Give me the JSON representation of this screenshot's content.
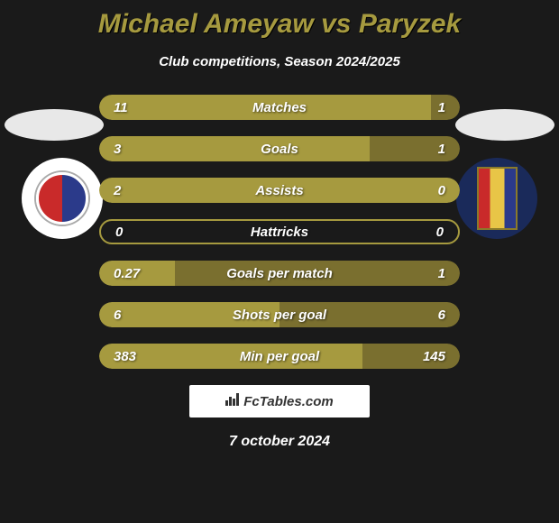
{
  "title": {
    "player1": "Michael Ameyaw",
    "vs": "vs",
    "player2": "Paryzek",
    "color": "#a69a3f",
    "fontsize": 30
  },
  "subtitle": {
    "text": "Club competitions, Season 2024/2025",
    "color": "#ffffff",
    "fontsize": 15
  },
  "stats": [
    {
      "label": "Matches",
      "left_value": "11",
      "right_value": "1",
      "left_pct": 92,
      "right_pct": 8,
      "left_color": "#a69a3f",
      "right_color": "#7a6f2f",
      "left_empty": false,
      "right_empty": false
    },
    {
      "label": "Goals",
      "left_value": "3",
      "right_value": "1",
      "left_pct": 75,
      "right_pct": 25,
      "left_color": "#a69a3f",
      "right_color": "#7a6f2f",
      "left_empty": false,
      "right_empty": false
    },
    {
      "label": "Assists",
      "left_value": "2",
      "right_value": "0",
      "left_pct": 100,
      "right_pct": 0,
      "left_color": "#a69a3f",
      "right_color": "#7a6f2f",
      "left_empty": false,
      "right_empty": true
    },
    {
      "label": "Hattricks",
      "left_value": "0",
      "right_value": "0",
      "left_pct": 50,
      "right_pct": 50,
      "left_color": "#a69a3f",
      "right_color": "#7a6f2f",
      "left_empty": true,
      "right_empty": true
    },
    {
      "label": "Goals per match",
      "left_value": "0.27",
      "right_value": "1",
      "left_pct": 21,
      "right_pct": 79,
      "left_color": "#a69a3f",
      "right_color": "#7a6f2f",
      "left_empty": false,
      "right_empty": false
    },
    {
      "label": "Shots per goal",
      "left_value": "6",
      "right_value": "6",
      "left_pct": 50,
      "right_pct": 50,
      "left_color": "#a69a3f",
      "right_color": "#7a6f2f",
      "left_empty": false,
      "right_empty": false
    },
    {
      "label": "Min per goal",
      "left_value": "383",
      "right_value": "145",
      "left_pct": 73,
      "right_pct": 27,
      "left_color": "#a69a3f",
      "right_color": "#7a6f2f",
      "left_empty": false,
      "right_empty": false
    }
  ],
  "styling": {
    "background_color": "#1a1a1a",
    "pill_width": 400,
    "pill_height": 28,
    "pill_border_radius": 14,
    "row_gap": 18,
    "value_color": "#ffffff",
    "label_color": "#ffffff",
    "value_fontsize": 15,
    "label_fontsize": 15
  },
  "badges": {
    "left": {
      "name": "rakow-czestochowa",
      "bg": "#ffffff",
      "inner_colors": [
        "#c92a2a",
        "#2b3a8a"
      ]
    },
    "right": {
      "name": "pogon-szczecin",
      "bg": "#1a2a5a",
      "inner_colors": [
        "#c92a2a",
        "#e8c547",
        "#2b3a8a"
      ]
    }
  },
  "ellipse": {
    "color": "#e8e8e8",
    "width": 110,
    "height": 35
  },
  "brand": {
    "text": "FcTables.com",
    "icon": "chart-icon",
    "bg": "#ffffff",
    "text_color": "#333333"
  },
  "date": {
    "text": "7 october 2024",
    "color": "#ffffff",
    "fontsize": 16
  }
}
